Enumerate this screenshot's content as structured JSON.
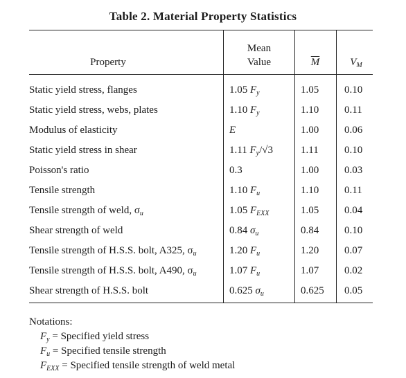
{
  "table": {
    "caption": "Table 2.  Material Property Statistics",
    "headers": {
      "property": "Property",
      "mean_value_line1": "Mean",
      "mean_value_line2": "Value",
      "m_bar": "M",
      "v_m": "V",
      "v_m_sub": "M"
    },
    "rows": [
      {
        "property": "Static yield stress, flanges",
        "mean_coef": "1.05",
        "mean_sym": "F",
        "mean_sub": "y",
        "mean_extra": "",
        "m": "1.05",
        "v": "0.10"
      },
      {
        "property": "Static yield stress, webs, plates",
        "mean_coef": "1.10",
        "mean_sym": "F",
        "mean_sub": "y",
        "mean_extra": "",
        "m": "1.10",
        "v": "0.11"
      },
      {
        "property": "Modulus of elasticity",
        "mean_coef": "",
        "mean_sym": "E",
        "mean_sub": "",
        "mean_extra": "",
        "m": "1.00",
        "v": "0.06"
      },
      {
        "property": "Static yield stress in shear",
        "mean_coef": "1.11",
        "mean_sym": "F",
        "mean_sub": "y",
        "mean_extra": "/√3",
        "m": "1.11",
        "v": "0.10"
      },
      {
        "property": "Poisson's ratio",
        "mean_coef": "0.3",
        "mean_sym": "",
        "mean_sub": "",
        "mean_extra": "",
        "m": "1.00",
        "v": "0.03"
      },
      {
        "property": "Tensile strength",
        "mean_coef": "1.10",
        "mean_sym": "F",
        "mean_sub": "u",
        "mean_extra": "",
        "m": "1.10",
        "v": "0.11"
      },
      {
        "property": "Tensile strength of weld, σ",
        "property_sub": "u",
        "mean_coef": "1.05",
        "mean_sym": "F",
        "mean_sub": "EXX",
        "mean_extra": "",
        "m": "1.05",
        "v": "0.04"
      },
      {
        "property": "Shear strength of weld",
        "mean_coef": "0.84",
        "mean_sym": "σ",
        "mean_sub": "u",
        "mean_extra": "",
        "m": "0.84",
        "v": "0.10"
      },
      {
        "property": "Tensile strength of H.S.S. bolt, A325, σ",
        "property_sub": "u",
        "mean_coef": "1.20",
        "mean_sym": "F",
        "mean_sub": "u",
        "mean_extra": "",
        "m": "1.20",
        "v": "0.07"
      },
      {
        "property": "Tensile strength of H.S.S. bolt, A490, σ",
        "property_sub": "u",
        "mean_coef": "1.07",
        "mean_sym": "F",
        "mean_sub": "u",
        "mean_extra": "",
        "m": "1.07",
        "v": "0.02"
      },
      {
        "property": "Shear strength of H.S.S. bolt",
        "mean_coef": "0.625",
        "mean_sym": "σ",
        "mean_sub": "u",
        "mean_extra": "",
        "m": "0.625",
        "v": "0.05"
      }
    ]
  },
  "notations": {
    "heading": "Notations:",
    "items": [
      {
        "sym": "F",
        "sub": "y",
        "text": " = Specified yield stress"
      },
      {
        "sym": "F",
        "sub": "u",
        "text": " = Specified tensile strength"
      },
      {
        "sym": "F",
        "sub": "EXX",
        "text": " = Specified tensile strength of weld metal"
      }
    ]
  }
}
